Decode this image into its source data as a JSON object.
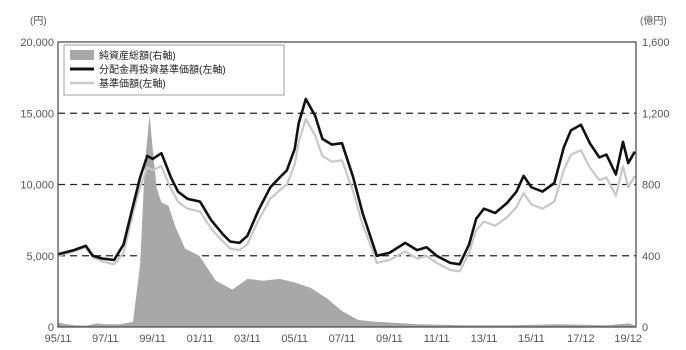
{
  "chart_data": {
    "type": "line",
    "left_axis_unit": "(円)",
    "right_axis_unit": "(億円)",
    "left_ylim": [
      0,
      20000
    ],
    "right_ylim": [
      0,
      1600
    ],
    "left_ticks": [
      "20,000",
      "15,000",
      "10,000",
      "5,000",
      "0"
    ],
    "right_ticks": [
      "1,600",
      "1,200",
      "800",
      "400",
      "0"
    ],
    "x_tick_labels": [
      "95/11",
      "97/11",
      "99/11",
      "01/11",
      "03/11",
      "05/11",
      "07/11",
      "09/11",
      "11/11",
      "13/11",
      "15/11",
      "17/12",
      "19/12"
    ],
    "grid": "dashed horizontal at 5,000 / 10,000 / 15,000",
    "legend_position": "top-left",
    "series": [
      {
        "name": "純資産総額(右軸)",
        "axis": "right",
        "style": "area",
        "color": "#a8a8a8",
        "x": [
          1995.83,
          1996.2,
          1996.6,
          1997.0,
          1997.5,
          1997.83,
          1998.5,
          1999.0,
          1999.3,
          1999.5,
          1999.7,
          1999.83,
          2000.0,
          2000.2,
          2000.5,
          2000.8,
          2001.2,
          2001.8,
          2002.5,
          2003.2,
          2003.83,
          2004.5,
          2005.2,
          2005.83,
          2006.5,
          2007.2,
          2007.83,
          2008.5,
          2009.2,
          2009.83,
          2011.0,
          2013.0,
          2015.0,
          2017.0,
          2019.0,
          2019.95,
          2020.2
        ],
        "values": [
          25,
          15,
          10,
          8,
          20,
          15,
          15,
          30,
          350,
          920,
          1190,
          1000,
          780,
          700,
          680,
          560,
          440,
          400,
          260,
          210,
          270,
          260,
          270,
          250,
          220,
          160,
          90,
          40,
          30,
          25,
          15,
          10,
          10,
          15,
          10,
          20,
          10
        ]
      },
      {
        "name": "分配金再投資基準価額(左軸)",
        "axis": "left",
        "style": "line",
        "color": "#111111",
        "x": [
          1995.83,
          1996.5,
          1997.0,
          1997.3,
          1997.7,
          1998.2,
          1998.6,
          1999.0,
          1999.3,
          1999.6,
          1999.83,
          2000.2,
          2000.6,
          2000.9,
          2001.3,
          2001.83,
          2002.3,
          2002.8,
          2003.1,
          2003.5,
          2003.83,
          2004.3,
          2004.8,
          2005.2,
          2005.5,
          2005.83,
          2006.0,
          2006.3,
          2006.7,
          2007.0,
          2007.4,
          2007.83,
          2008.3,
          2008.7,
          2009.0,
          2009.3,
          2009.83,
          2010.5,
          2011.0,
          2011.4,
          2011.83,
          2012.4,
          2012.8,
          2013.2,
          2013.5,
          2013.83,
          2014.3,
          2014.8,
          2015.2,
          2015.5,
          2015.83,
          2016.3,
          2016.8,
          2017.2,
          2017.5,
          2017.92,
          2018.3,
          2018.7,
          2019.0,
          2019.4,
          2019.7,
          2019.92,
          2020.2
        ],
        "values": [
          5100,
          5400,
          5700,
          5000,
          4800,
          4700,
          5800,
          8500,
          10500,
          12000,
          11800,
          12200,
          10500,
          9500,
          9000,
          8800,
          7500,
          6500,
          6000,
          5900,
          6400,
          8200,
          9800,
          10500,
          11000,
          12500,
          14300,
          16000,
          14800,
          13200,
          12800,
          12900,
          10500,
          8000,
          6500,
          5000,
          5200,
          5900,
          5400,
          5600,
          5000,
          4500,
          4400,
          5800,
          7600,
          8300,
          8000,
          8700,
          9500,
          10600,
          9800,
          9500,
          10100,
          12600,
          13800,
          14200,
          12900,
          11900,
          12100,
          10700,
          13000,
          11500,
          12300
        ]
      },
      {
        "name": "基準価額(左軸)",
        "axis": "left",
        "style": "line",
        "color": "#c8c8c8",
        "x": [
          1995.83,
          1996.5,
          1997.0,
          1997.3,
          1997.7,
          1998.2,
          1998.6,
          1999.0,
          1999.3,
          1999.6,
          1999.83,
          2000.2,
          2000.6,
          2000.9,
          2001.3,
          2001.83,
          2002.3,
          2002.8,
          2003.1,
          2003.5,
          2003.83,
          2004.3,
          2004.8,
          2005.2,
          2005.5,
          2005.83,
          2006.0,
          2006.3,
          2006.7,
          2007.0,
          2007.4,
          2007.83,
          2008.3,
          2008.7,
          2009.0,
          2009.3,
          2009.83,
          2010.5,
          2011.0,
          2011.4,
          2011.83,
          2012.4,
          2012.8,
          2013.2,
          2013.5,
          2013.83,
          2014.3,
          2014.8,
          2015.2,
          2015.5,
          2015.83,
          2016.3,
          2016.8,
          2017.2,
          2017.5,
          2017.92,
          2018.3,
          2018.7,
          2019.0,
          2019.4,
          2019.7,
          2019.92,
          2020.2
        ],
        "values": [
          5000,
          5300,
          5600,
          4900,
          4600,
          4400,
          5200,
          8000,
          9800,
          11200,
          11000,
          11300,
          9700,
          8800,
          8300,
          8100,
          6900,
          6000,
          5500,
          5400,
          5800,
          7500,
          9000,
          9600,
          10000,
          11400,
          13000,
          14600,
          13400,
          12000,
          11600,
          11700,
          9500,
          7200,
          5900,
          4500,
          4700,
          5300,
          4800,
          5000,
          4500,
          4000,
          3900,
          5200,
          6800,
          7400,
          7100,
          7700,
          8400,
          9400,
          8600,
          8300,
          8800,
          11000,
          12100,
          12400,
          11200,
          10300,
          10500,
          9200,
          11300,
          9800,
          10600
        ]
      }
    ]
  }
}
